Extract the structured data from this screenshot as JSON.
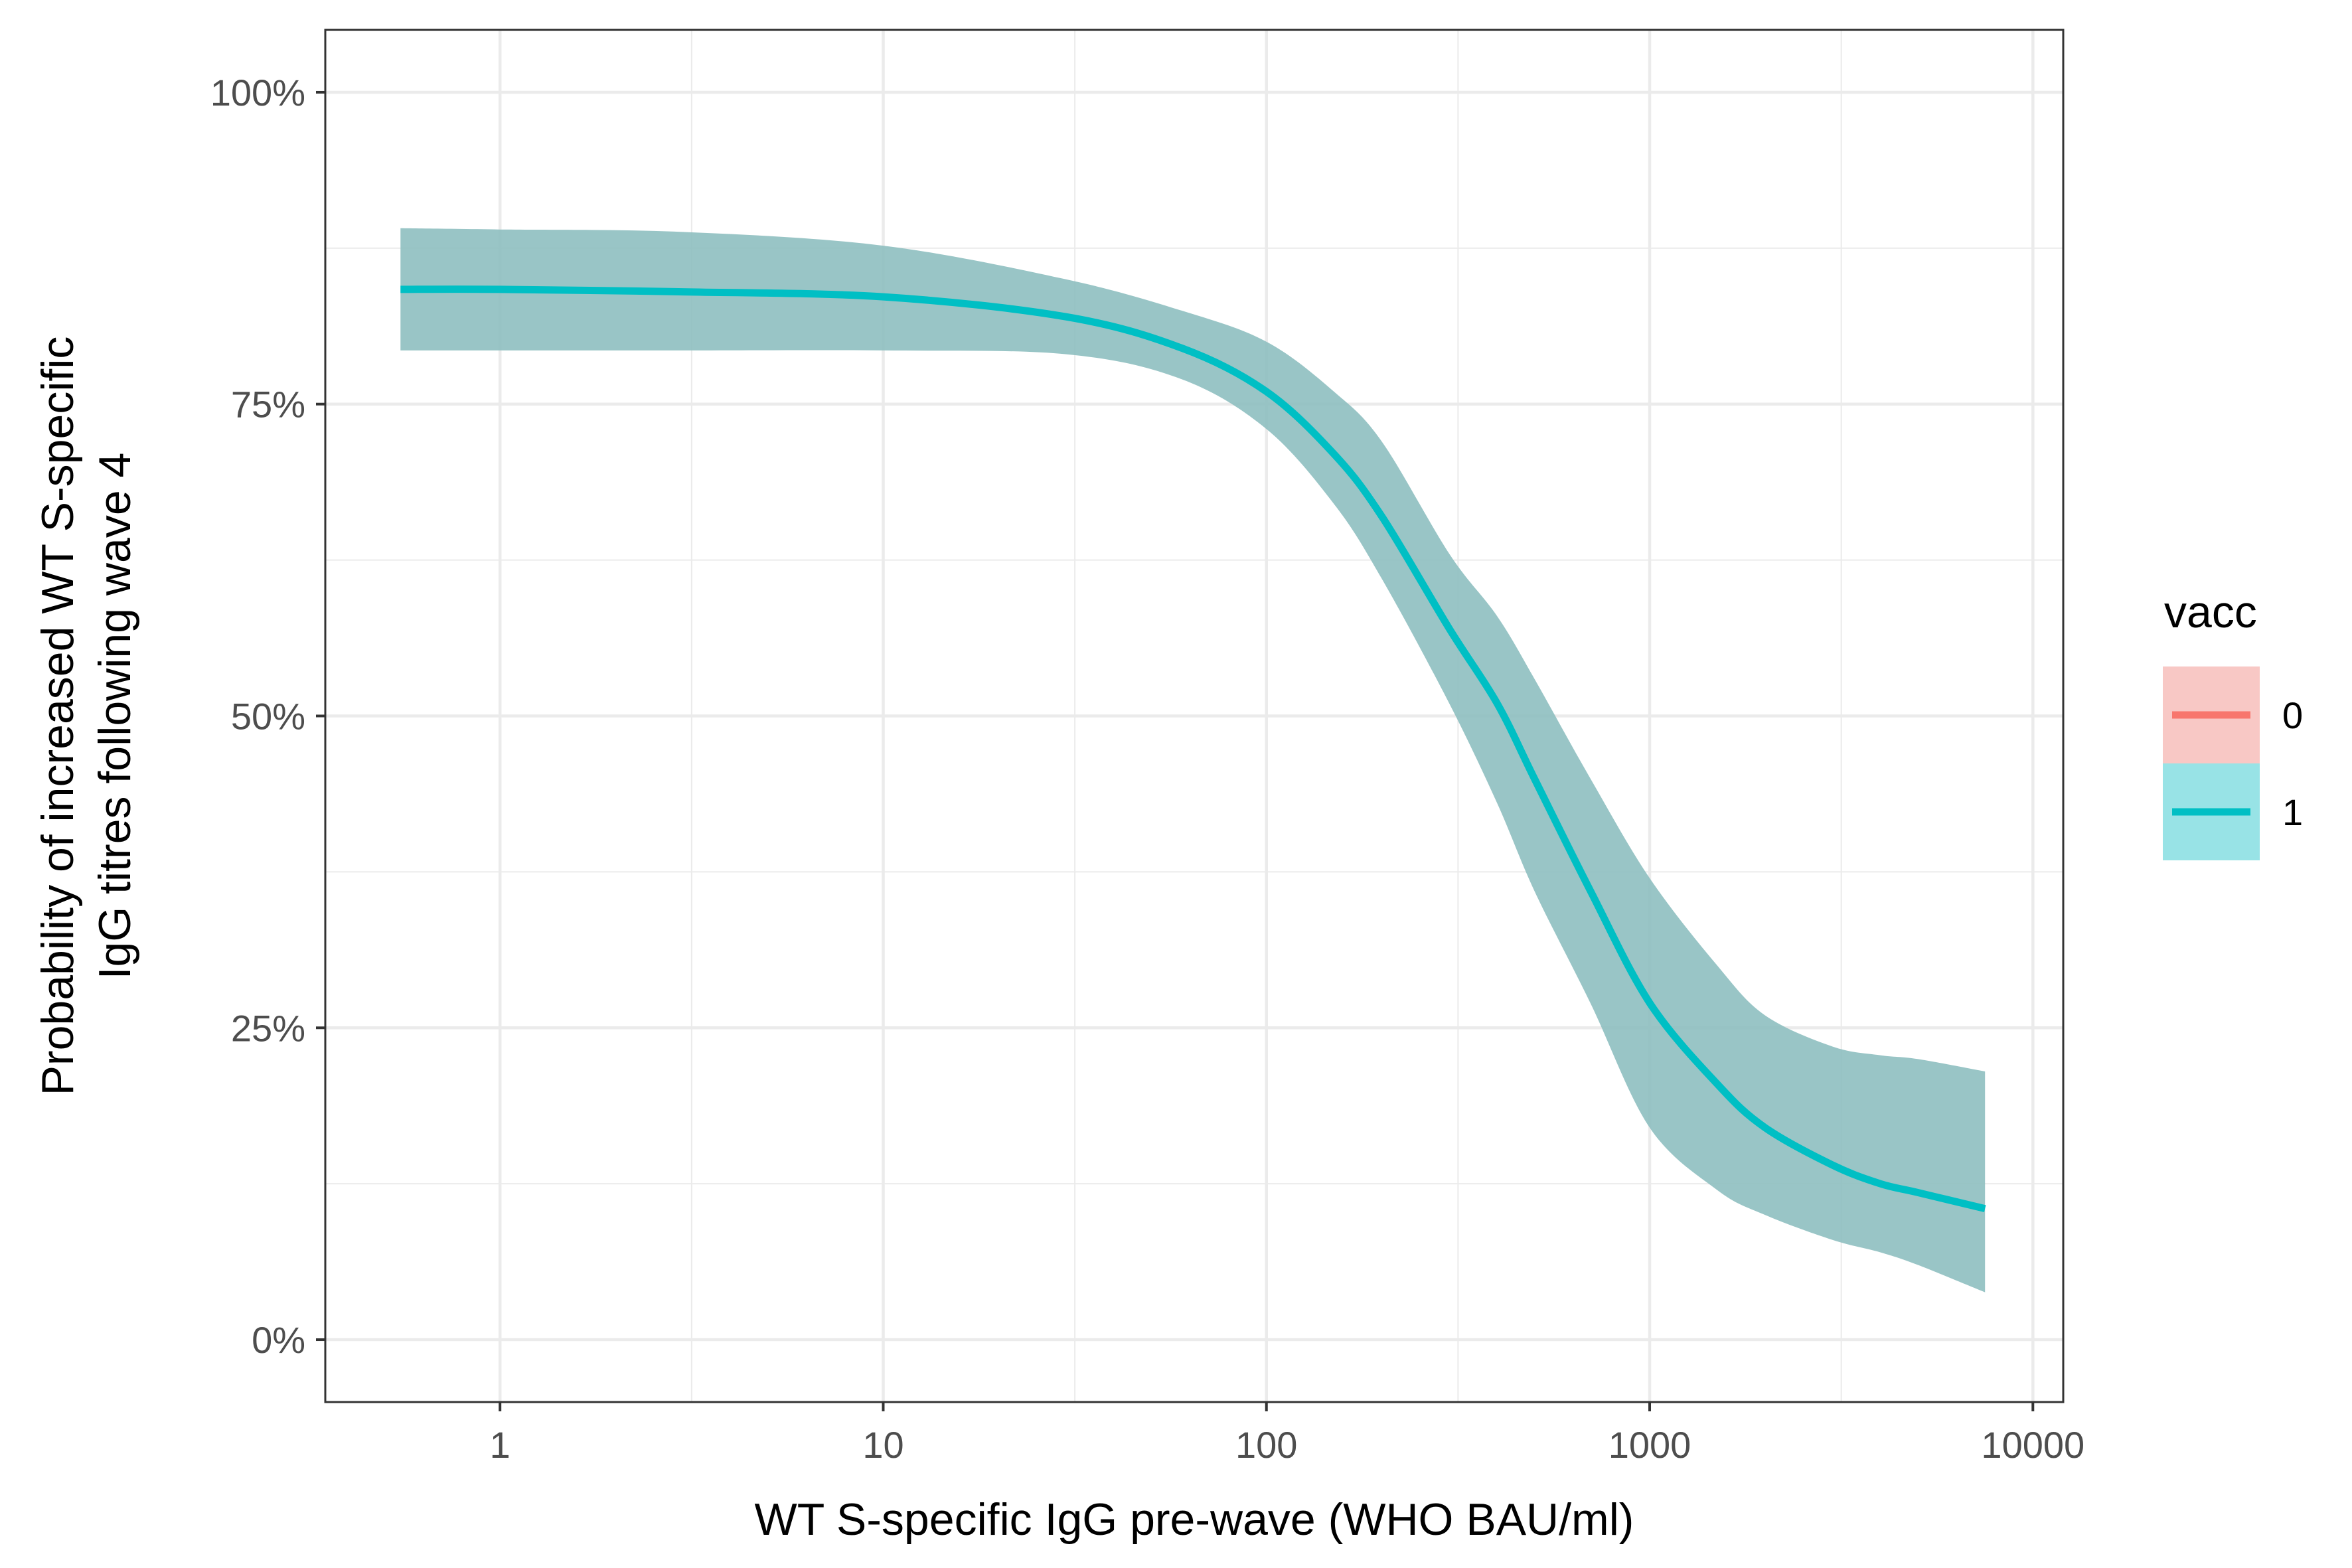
{
  "chart_data": {
    "type": "line",
    "title": "",
    "xlabel": "WT S-specific IgG pre-wave (WHO BAU/ml)",
    "ylabel_lines": [
      "Probability of increased WT S-specific",
      "IgG titres following wave 4"
    ],
    "x_scale": "log10",
    "xlim": [
      0.35,
      12000
    ],
    "ylim": [
      -0.05,
      1.05
    ],
    "x_ticks": [
      1,
      10,
      100,
      1000,
      10000
    ],
    "x_tick_labels": [
      "1",
      "10",
      "100",
      "1000",
      "10000"
    ],
    "y_ticks": [
      0,
      0.25,
      0.5,
      0.75,
      1.0
    ],
    "y_tick_labels": [
      "0%",
      "25%",
      "50%",
      "75%",
      "100%"
    ],
    "grid": true,
    "legend": {
      "title": "vacc",
      "placement": "right",
      "entries": [
        {
          "label": "0",
          "line_color": "#F8766D",
          "fill_color": "#F8C8C5"
        },
        {
          "label": "1",
          "line_color": "#00BFC4",
          "fill_color": "#98E3E6"
        }
      ]
    },
    "series": [
      {
        "name": "1",
        "color": "#00BFC4",
        "ribbon_color": "#8BBDBE",
        "x": [
          0.55,
          1,
          3,
          10,
          30,
          60,
          100,
          150,
          200,
          300,
          400,
          500,
          700,
          1000,
          1500,
          2000,
          3000,
          4000,
          5000,
          7500
        ],
        "y": [
          0.842,
          0.842,
          0.84,
          0.836,
          0.82,
          0.795,
          0.76,
          0.71,
          0.66,
          0.57,
          0.51,
          0.45,
          0.36,
          0.27,
          0.205,
          0.17,
          0.14,
          0.125,
          0.118,
          0.105
        ],
        "lower": [
          0.793,
          0.793,
          0.793,
          0.793,
          0.79,
          0.77,
          0.73,
          0.67,
          0.61,
          0.51,
          0.43,
          0.36,
          0.27,
          0.17,
          0.12,
          0.1,
          0.08,
          0.07,
          0.06,
          0.038
        ],
        "upper": [
          0.891,
          0.89,
          0.888,
          0.877,
          0.85,
          0.825,
          0.8,
          0.76,
          0.72,
          0.63,
          0.58,
          0.53,
          0.45,
          0.37,
          0.3,
          0.26,
          0.235,
          0.228,
          0.225,
          0.215
        ]
      }
    ]
  }
}
